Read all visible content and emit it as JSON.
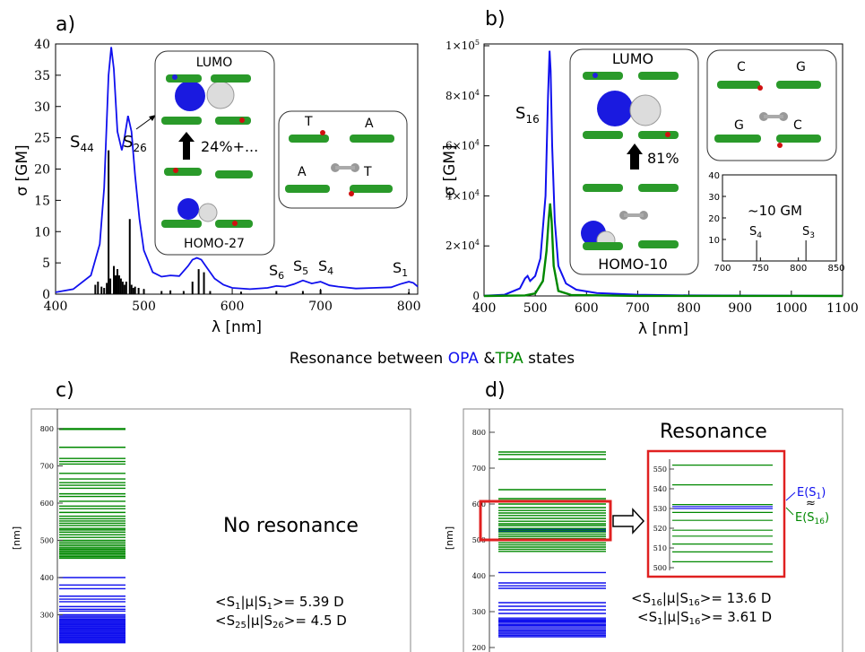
{
  "chart_data": [
    {
      "panel": "a)",
      "type": "line",
      "ylabel": "σ [GM]",
      "xlabel": "λ [nm]",
      "xlim": [
        400,
        810
      ],
      "ylim": [
        0,
        40
      ],
      "xticks": [
        400,
        500,
        600,
        700,
        800
      ],
      "yticks": [
        0,
        5,
        10,
        15,
        20,
        25,
        30,
        35,
        40
      ],
      "series": [
        {
          "color": "#1010ee",
          "x": [
            400,
            420,
            440,
            450,
            455,
            460,
            463,
            466,
            470,
            475,
            478,
            482,
            486,
            490,
            495,
            500,
            510,
            520,
            530,
            540,
            550,
            555,
            560,
            565,
            570,
            580,
            590,
            600,
            620,
            640,
            650,
            660,
            670,
            680,
            690,
            700,
            710,
            720,
            740,
            760,
            780,
            790,
            800,
            805,
            810
          ],
          "y": [
            0.3,
            0.8,
            3,
            8,
            17,
            35,
            39.5,
            36,
            26,
            23,
            25,
            28.5,
            26,
            19,
            12,
            7,
            3.5,
            2.8,
            3,
            2.9,
            4.5,
            5.5,
            5.8,
            5.5,
            4.5,
            2.5,
            1.5,
            1,
            0.8,
            1,
            1.3,
            1.2,
            1.6,
            2.2,
            1.7,
            2,
            1.4,
            1.2,
            0.9,
            1,
            1.1,
            1.6,
            2,
            1.8,
            1.2
          ]
        }
      ],
      "sticks": {
        "x": [
          445,
          448,
          452,
          455,
          458,
          460,
          462,
          466,
          468,
          470,
          472,
          474,
          476,
          478,
          480,
          484,
          486,
          488,
          490,
          494,
          500,
          520,
          530,
          545,
          555,
          562,
          568,
          575,
          610,
          650,
          680,
          700,
          800
        ],
        "y": [
          1.5,
          2,
          1.2,
          1,
          1.8,
          23,
          2.5,
          4.5,
          3,
          4,
          3,
          2.5,
          2,
          1.5,
          2,
          12,
          1.5,
          1,
          1.2,
          1,
          0.8,
          0.5,
          0.6,
          0.5,
          2,
          4,
          3.5,
          0.5,
          0.4,
          0.5,
          0.5,
          0.7,
          0.3
        ]
      },
      "annotations": [
        "S44",
        "S26",
        "S6",
        "S5",
        "S4",
        "S1"
      ],
      "orbital_labels": [
        "LUMO",
        "24%+...",
        "HOMO-27"
      ],
      "base_labels": [
        "T",
        "A",
        "A",
        "T"
      ]
    },
    {
      "panel": "b)",
      "type": "line",
      "ylabel": "σ [GM]",
      "xlabel": "λ [nm]",
      "xlim": [
        400,
        1100
      ],
      "ylim": [
        0,
        100000
      ],
      "xticks": [
        400,
        500,
        600,
        700,
        800,
        900,
        1000,
        1100
      ],
      "yticks": [
        "0",
        "2×10^4",
        "4×10^4",
        "6×10^4",
        "8×10^4",
        "1×10^5"
      ],
      "series": [
        {
          "color": "#1010ee",
          "x": [
            400,
            440,
            470,
            480,
            485,
            490,
            500,
            510,
            520,
            525,
            528,
            530,
            533,
            538,
            545,
            560,
            580,
            620,
            700,
            800,
            1100
          ],
          "y": [
            100,
            500,
            3000,
            7000,
            8000,
            6000,
            8000,
            15000,
            40000,
            80000,
            98000,
            90000,
            60000,
            30000,
            12000,
            5000,
            2500,
            1200,
            500,
            200,
            50
          ]
        },
        {
          "color": "#008800",
          "x": [
            400,
            480,
            500,
            515,
            522,
            526,
            529,
            532,
            536,
            545,
            570,
            700,
            1100
          ],
          "y": [
            0,
            200,
            1000,
            6000,
            18000,
            30000,
            37000,
            30000,
            12000,
            2000,
            400,
            50,
            0
          ]
        }
      ],
      "annotations": [
        "S16"
      ],
      "orbital_labels": [
        "LUMO",
        "81%",
        "HOMO-10"
      ],
      "base_labels": [
        "C",
        "G",
        "G",
        "C"
      ],
      "inset": {
        "text": "~10 GM",
        "xlim": [
          700,
          850
        ],
        "ylim": [
          0,
          40
        ],
        "xticks": [
          700,
          750,
          800,
          850
        ],
        "yticks": [
          10,
          20,
          30,
          40
        ],
        "labels": [
          "S4",
          "S3"
        ],
        "label_x": [
          745,
          810
        ]
      }
    },
    {
      "panel": "c)",
      "type": "levels",
      "ylabel": "[nm]",
      "yticks": [
        300,
        400,
        500,
        600,
        700,
        800
      ],
      "tpa_levels_nm": [
        800,
        799,
        798,
        750,
        720,
        712,
        705,
        680,
        665,
        655,
        648,
        640,
        625,
        618,
        605,
        592,
        585,
        575,
        565,
        558,
        552,
        546,
        540,
        532,
        528,
        522,
        515,
        508,
        500,
        495,
        490,
        485,
        480,
        476,
        472,
        468,
        464,
        460,
        456,
        452
      ],
      "opa_levels_nm": [
        400,
        380,
        370,
        350,
        342,
        335,
        322,
        315,
        310,
        300,
        296,
        292,
        288,
        285,
        282,
        279,
        276,
        273,
        270,
        267,
        264,
        261,
        258,
        255,
        252,
        249,
        246,
        243,
        240,
        237,
        234,
        231,
        228,
        225
      ],
      "text": "No resonance",
      "dipoles": [
        "<S1|μ|S1>= 5.39 D",
        "<S25|μ|S26>= 4.5 D"
      ]
    },
    {
      "panel": "d)",
      "type": "levels",
      "ylabel": "[nm]",
      "yticks": [
        200,
        300,
        400,
        500,
        600,
        700,
        800
      ],
      "tpa_levels_nm": [
        745,
        738,
        725,
        640,
        615,
        610,
        600,
        590,
        582,
        575,
        568,
        560,
        552,
        545,
        540,
        532,
        527,
        522,
        516,
        510,
        504,
        498,
        492,
        486,
        480,
        474,
        468
      ],
      "opa_levels_nm": [
        530,
        525,
        409,
        380,
        372,
        365,
        325,
        315,
        305,
        295,
        282,
        278,
        275,
        272,
        270,
        265,
        262,
        260,
        255,
        250,
        246,
        242,
        238,
        234,
        230
      ],
      "inset": {
        "yticks": [
          500,
          510,
          520,
          530,
          540,
          550
        ],
        "opa": [
          531,
          530
        ],
        "tpa": [
          552,
          542,
          532,
          528,
          524,
          519,
          516,
          512,
          508,
          503
        ]
      },
      "text": "Resonance",
      "dipoles": [
        "<S16|μ|S16>= 13.6 D",
        "<S1|μ|S16>= 3.61 D"
      ],
      "energy_labels": [
        "E(S1)",
        "≈",
        "E(S16)"
      ]
    }
  ],
  "middle_title": {
    "prefix": "Resonance between ",
    "opa": "OPA",
    "amp": " &",
    "tpa": "TPA",
    "suffix": " states"
  },
  "colors": {
    "opa": "#1010ee",
    "tpa": "#008800",
    "highlight": "#e02020"
  },
  "icons": {
    "molecule": "molecule-illustration-icon",
    "arrow": "up-arrow-icon",
    "hollow_arrow": "hollow-right-arrow-icon"
  }
}
